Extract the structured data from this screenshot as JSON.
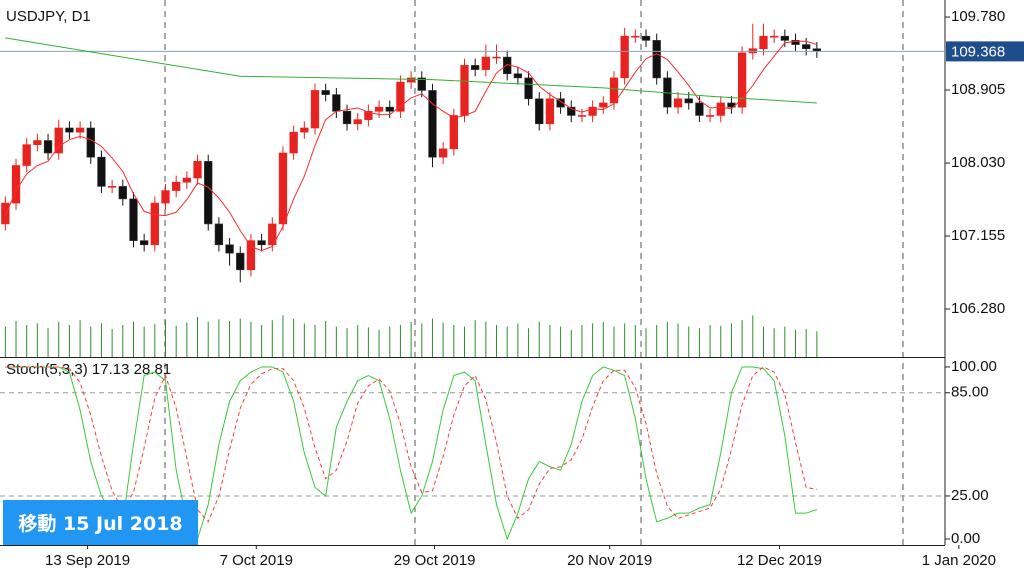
{
  "chart_data": [
    {
      "type": "candlestick",
      "title": "USDJPY, D1",
      "open": [
        107.3,
        107.55,
        108.0,
        108.25,
        108.3,
        108.15,
        108.45,
        108.4,
        108.45,
        108.1,
        107.75,
        107.75,
        107.6,
        107.1,
        107.05,
        107.55,
        107.7,
        107.8,
        107.85,
        108.05,
        107.3,
        107.05,
        106.95,
        106.75,
        107.1,
        107.05,
        107.3,
        108.15,
        108.4,
        108.45,
        108.9,
        108.85,
        108.65,
        108.5,
        108.55,
        108.65,
        108.7,
        108.65,
        109.0,
        109.05,
        108.9,
        108.1,
        108.2,
        108.6,
        109.2,
        109.15,
        109.3,
        109.3,
        109.1,
        109.05,
        108.8,
        108.5,
        108.8,
        108.7,
        108.6,
        108.6,
        108.7,
        108.75,
        109.05,
        109.55,
        109.55,
        109.5,
        109.05,
        108.7,
        108.8,
        108.75,
        108.6,
        108.6,
        108.75,
        108.7,
        109.35,
        109.4,
        109.55,
        109.55,
        109.5,
        109.45,
        109.4
      ],
      "high": [
        107.63,
        108.08,
        108.33,
        108.38,
        108.38,
        108.55,
        108.53,
        108.53,
        108.53,
        108.18,
        107.83,
        107.83,
        107.68,
        107.18,
        107.63,
        107.78,
        107.88,
        107.93,
        108.13,
        108.13,
        107.38,
        107.13,
        107.03,
        107.18,
        107.18,
        107.38,
        108.23,
        108.48,
        108.53,
        108.98,
        108.98,
        108.93,
        108.73,
        108.63,
        108.73,
        108.78,
        108.78,
        109.08,
        109.13,
        109.13,
        108.98,
        108.28,
        108.68,
        109.28,
        109.28,
        109.45,
        109.45,
        109.38,
        109.18,
        109.13,
        108.88,
        108.88,
        108.88,
        108.78,
        108.68,
        108.78,
        108.83,
        109.13,
        109.65,
        109.63,
        109.63,
        109.58,
        109.13,
        108.88,
        108.88,
        108.83,
        108.68,
        108.83,
        108.83,
        109.43,
        109.7,
        109.7,
        109.63,
        109.63,
        109.58,
        109.53,
        109.48
      ],
      "low": [
        107.22,
        107.47,
        107.92,
        108.17,
        108.07,
        108.07,
        108.32,
        108.32,
        108.02,
        107.67,
        107.67,
        107.52,
        107.02,
        106.97,
        106.97,
        107.47,
        107.62,
        107.72,
        107.77,
        107.22,
        106.97,
        106.8,
        106.6,
        106.67,
        106.97,
        106.97,
        107.22,
        108.07,
        108.32,
        108.37,
        108.77,
        108.57,
        108.42,
        108.42,
        108.47,
        108.57,
        108.57,
        108.57,
        108.92,
        108.82,
        107.98,
        108.02,
        108.12,
        108.52,
        109.07,
        109.07,
        109.22,
        109.02,
        108.97,
        108.72,
        108.42,
        108.42,
        108.62,
        108.52,
        108.52,
        108.52,
        108.62,
        108.67,
        108.97,
        109.47,
        109.42,
        108.97,
        108.62,
        108.62,
        108.67,
        108.52,
        108.52,
        108.52,
        108.62,
        108.62,
        109.27,
        109.32,
        109.47,
        109.42,
        109.37,
        109.32,
        109.29
      ],
      "close": [
        107.55,
        108.0,
        108.25,
        108.3,
        108.15,
        108.45,
        108.4,
        108.45,
        108.1,
        107.75,
        107.75,
        107.6,
        107.1,
        107.05,
        107.55,
        107.7,
        107.8,
        107.85,
        108.05,
        107.3,
        107.05,
        106.95,
        106.75,
        107.1,
        107.05,
        107.3,
        108.15,
        108.4,
        108.45,
        108.9,
        108.85,
        108.65,
        108.5,
        108.55,
        108.65,
        108.7,
        108.65,
        109.0,
        109.05,
        108.9,
        108.1,
        108.2,
        108.6,
        109.2,
        109.15,
        109.3,
        109.3,
        109.1,
        109.05,
        108.8,
        108.5,
        108.8,
        108.7,
        108.6,
        108.6,
        108.7,
        108.75,
        109.05,
        109.55,
        109.55,
        109.5,
        109.05,
        108.7,
        108.8,
        108.75,
        108.6,
        108.6,
        108.75,
        108.7,
        109.35,
        109.4,
        109.55,
        109.55,
        109.5,
        109.45,
        109.4,
        109.37
      ],
      "up_color": "#e8231f",
      "down_color": "#111111",
      "volumes": [
        38,
        45,
        40,
        42,
        36,
        44,
        40,
        46,
        38,
        42,
        35,
        40,
        44,
        38,
        41,
        46,
        39,
        43,
        50,
        44,
        47,
        45,
        48,
        44,
        40,
        46,
        52,
        48,
        42,
        40,
        45,
        38,
        36,
        40,
        37,
        34,
        38,
        40,
        44,
        42,
        48,
        43,
        40,
        38,
        46,
        44,
        40,
        38,
        42,
        36,
        44,
        40,
        38,
        34,
        40,
        42,
        44,
        38,
        42,
        40,
        36,
        40,
        44,
        42,
        38,
        36,
        40,
        39,
        42,
        46,
        52,
        38,
        36,
        38,
        34,
        35,
        32
      ],
      "volume_ylim": [
        0,
        100
      ],
      "volume_color": "#2e8b2e",
      "lines": [
        {
          "color": "#ff2a2a",
          "values": [
            107.4,
            107.7,
            107.9,
            108.0,
            108.05,
            108.23,
            108.31,
            108.35,
            108.31,
            108.23,
            108.09,
            107.93,
            107.66,
            107.45,
            107.41,
            107.4,
            107.44,
            107.59,
            107.79,
            107.74,
            107.61,
            107.44,
            107.22,
            107.03,
            106.98,
            107.03,
            107.27,
            107.6,
            107.87,
            108.24,
            108.55,
            108.65,
            108.67,
            108.69,
            108.64,
            108.61,
            108.61,
            108.71,
            108.81,
            108.86,
            108.74,
            108.65,
            108.57,
            108.6,
            108.65,
            108.89,
            109.11,
            109.21,
            109.18,
            109.11,
            108.95,
            108.85,
            108.77,
            108.68,
            108.64,
            108.68,
            108.67,
            108.74,
            108.93,
            109.12,
            109.28,
            109.34,
            109.27,
            109.12,
            108.96,
            108.78,
            108.69,
            108.7,
            108.68,
            108.8,
            108.96,
            109.15,
            109.31,
            109.47,
            109.49,
            109.49,
            109.45
          ]
        },
        {
          "color": "#33b033",
          "x": [
            0,
            10,
            22,
            40,
            56,
            66,
            76
          ],
          "values": [
            109.53,
            109.32,
            109.07,
            109.03,
            108.93,
            108.83,
            108.75
          ]
        }
      ],
      "last_price": 109.368,
      "last_price_color": "#1e4d8c",
      "xlim": [
        -0.5,
        88
      ],
      "ylim": [
        105.705,
        109.984
      ],
      "yticks": [
        {
          "value": 106.28,
          "label": "106.280"
        },
        {
          "value": 107.155,
          "label": "107.155"
        },
        {
          "value": 108.03,
          "label": "108.030"
        },
        {
          "value": 108.905,
          "label": "108.905"
        },
        {
          "value": 109.78,
          "label": "109.780"
        }
      ]
    },
    {
      "type": "line",
      "label": "Stoch(5,3,3)",
      "series": [
        {
          "color": "#3cc83c",
          "values": [
            100,
            100,
            100,
            100,
            100,
            100,
            97,
            75,
            45,
            25,
            15,
            10,
            55,
            95,
            97,
            92,
            40,
            10,
            0,
            20,
            55,
            80,
            92,
            97,
            100,
            100,
            97,
            80,
            50,
            30,
            25,
            65,
            80,
            92,
            95,
            92,
            70,
            40,
            15,
            25,
            45,
            75,
            95,
            97,
            92,
            55,
            20,
            0,
            15,
            35,
            45,
            42,
            40,
            55,
            80,
            95,
            100,
            98,
            95,
            70,
            35,
            10,
            12,
            15,
            15,
            18,
            20,
            50,
            85,
            100,
            100,
            99,
            92,
            60,
            15,
            15,
            17.13
          ]
        },
        {
          "color": "#ff3b3b",
          "dashed": true,
          "values": [
            100,
            100,
            100,
            100,
            100,
            100,
            99,
            91,
            72,
            48,
            28,
            17,
            27,
            53,
            82,
            95,
            76,
            47,
            17,
            10,
            25,
            52,
            76,
            90,
            96,
            99,
            99,
            92,
            76,
            53,
            35,
            40,
            57,
            79,
            89,
            93,
            86,
            67,
            42,
            27,
            28,
            48,
            72,
            89,
            95,
            81,
            56,
            25,
            12,
            17,
            32,
            41,
            42,
            46,
            58,
            77,
            92,
            98,
            98,
            88,
            67,
            38,
            19,
            12,
            14,
            16,
            18,
            29,
            52,
            78,
            95,
            100,
            97,
            84,
            56,
            30,
            28.81
          ]
        }
      ],
      "levels": [
        85,
        25
      ],
      "xlim": [
        -0.5,
        88
      ],
      "ylim": [
        -3.5,
        105.2
      ],
      "yticks": [
        {
          "value": 0,
          "label": "0.00"
        },
        {
          "value": 25,
          "label": "25.00"
        },
        {
          "value": 85,
          "label": "85.00"
        },
        {
          "value": 100,
          "label": "100.00"
        }
      ],
      "xticks": [
        {
          "value": 7.7,
          "label": "13 Sep 2019"
        },
        {
          "value": 23.5,
          "label": "7 Oct 2019"
        },
        {
          "value": 40.2,
          "label": "29 Oct 2019"
        },
        {
          "value": 56.6,
          "label": "20 Nov 2019"
        },
        {
          "value": 72.5,
          "label": "12 Dec 2019"
        },
        {
          "value": 89.3,
          "label": "1 Jan 2020"
        }
      ]
    }
  ],
  "scroll_button": "移動 15 Jul 2018"
}
